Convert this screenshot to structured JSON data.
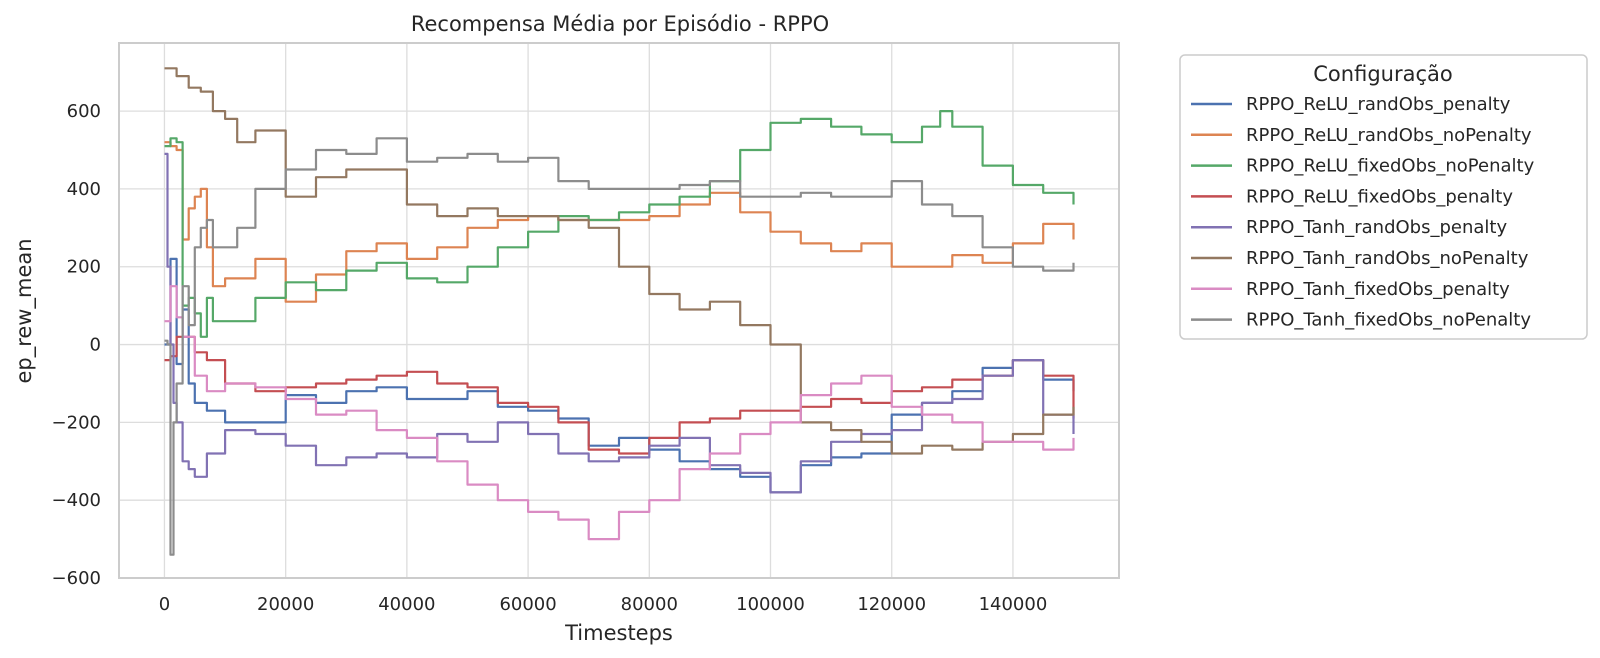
{
  "chart_data": {
    "type": "line",
    "title": "Recompensa Média por Episódio - RPPO",
    "xlabel": "Timesteps",
    "ylabel": "ep_rew_mean",
    "xlim": [
      -7500,
      157500
    ],
    "ylim": [
      -600,
      775
    ],
    "xticks": [
      0,
      20000,
      40000,
      60000,
      80000,
      100000,
      120000,
      140000
    ],
    "xtick_labels": [
      "0",
      "20000",
      "40000",
      "60000",
      "80000",
      "100000",
      "120000",
      "140000"
    ],
    "yticks": [
      -600,
      -400,
      -200,
      0,
      200,
      400,
      600
    ],
    "ytick_labels": [
      "−600",
      "−400",
      "−200",
      "0",
      "200",
      "400",
      "600"
    ],
    "grid": true,
    "legend_title": "Configuração",
    "legend_position": "outside-right",
    "series": [
      {
        "name": "RPPO_ReLU_randObs_penalty",
        "color": "#4c72b0",
        "x": [
          0,
          1000,
          2000,
          3000,
          4000,
          5000,
          7000,
          10000,
          15000,
          20000,
          25000,
          30000,
          35000,
          40000,
          45000,
          50000,
          55000,
          60000,
          65000,
          70000,
          75000,
          80000,
          85000,
          90000,
          95000,
          100000,
          105000,
          110000,
          115000,
          120000,
          125000,
          130000,
          135000,
          140000,
          145000,
          150000
        ],
        "y": [
          0,
          220,
          -50,
          90,
          -100,
          -150,
          -170,
          -200,
          -200,
          -130,
          -150,
          -120,
          -110,
          -140,
          -140,
          -120,
          -160,
          -170,
          -190,
          -260,
          -240,
          -270,
          -300,
          -320,
          -340,
          -380,
          -310,
          -290,
          -280,
          -180,
          -150,
          -120,
          -60,
          -40,
          -90,
          -120
        ]
      },
      {
        "name": "RPPO_ReLU_randObs_noPenalty",
        "color": "#dd8452",
        "x": [
          0,
          1000,
          2000,
          3000,
          4000,
          5000,
          6000,
          7000,
          8000,
          10000,
          15000,
          20000,
          25000,
          30000,
          35000,
          40000,
          45000,
          50000,
          55000,
          60000,
          65000,
          70000,
          75000,
          80000,
          85000,
          90000,
          95000,
          100000,
          105000,
          110000,
          115000,
          120000,
          125000,
          130000,
          135000,
          140000,
          145000,
          150000
        ],
        "y": [
          520,
          510,
          500,
          270,
          350,
          380,
          400,
          250,
          150,
          170,
          220,
          110,
          180,
          240,
          260,
          220,
          250,
          300,
          320,
          330,
          320,
          320,
          320,
          330,
          360,
          390,
          340,
          290,
          260,
          240,
          260,
          200,
          200,
          230,
          210,
          260,
          310,
          270
        ]
      },
      {
        "name": "RPPO_ReLU_fixedObs_noPenalty",
        "color": "#55a868",
        "x": [
          0,
          1000,
          2000,
          3000,
          4000,
          5000,
          6000,
          7000,
          8000,
          10000,
          15000,
          20000,
          25000,
          30000,
          35000,
          40000,
          45000,
          50000,
          55000,
          60000,
          65000,
          70000,
          75000,
          80000,
          85000,
          90000,
          95000,
          100000,
          105000,
          110000,
          115000,
          120000,
          125000,
          128000,
          130000,
          135000,
          140000,
          145000,
          150000
        ],
        "y": [
          510,
          530,
          520,
          100,
          120,
          80,
          20,
          120,
          60,
          60,
          120,
          160,
          140,
          190,
          210,
          170,
          160,
          200,
          250,
          290,
          330,
          320,
          340,
          360,
          380,
          420,
          500,
          570,
          580,
          560,
          540,
          520,
          560,
          600,
          560,
          460,
          410,
          390,
          360
        ]
      },
      {
        "name": "RPPO_ReLU_fixedObs_penalty",
        "color": "#c44e52",
        "x": [
          0,
          1000,
          2000,
          3000,
          5000,
          7000,
          10000,
          15000,
          20000,
          25000,
          30000,
          35000,
          40000,
          45000,
          50000,
          55000,
          60000,
          65000,
          70000,
          75000,
          80000,
          85000,
          90000,
          95000,
          100000,
          105000,
          110000,
          115000,
          120000,
          125000,
          130000,
          135000,
          140000,
          145000,
          150000
        ],
        "y": [
          -40,
          -30,
          20,
          20,
          -20,
          -40,
          -100,
          -120,
          -110,
          -100,
          -90,
          -80,
          -70,
          -100,
          -110,
          -150,
          -160,
          -200,
          -270,
          -280,
          -240,
          -200,
          -190,
          -170,
          -170,
          -160,
          -140,
          -150,
          -120,
          -110,
          -90,
          -80,
          -40,
          -80,
          -190
        ]
      },
      {
        "name": "RPPO_Tanh_randObs_penalty",
        "color": "#8172b3",
        "x": [
          0,
          500,
          1000,
          1500,
          2000,
          3000,
          4000,
          5000,
          7000,
          10000,
          15000,
          20000,
          25000,
          30000,
          35000,
          40000,
          45000,
          50000,
          55000,
          60000,
          65000,
          70000,
          75000,
          80000,
          85000,
          90000,
          95000,
          100000,
          105000,
          110000,
          115000,
          120000,
          125000,
          130000,
          135000,
          140000,
          145000,
          150000
        ],
        "y": [
          490,
          200,
          0,
          -150,
          -200,
          -300,
          -320,
          -340,
          -280,
          -220,
          -230,
          -260,
          -310,
          -290,
          -280,
          -290,
          -230,
          -250,
          -200,
          -230,
          -280,
          -300,
          -290,
          -260,
          -240,
          -310,
          -330,
          -380,
          -300,
          -250,
          -230,
          -220,
          -150,
          -140,
          -80,
          -40,
          -180,
          -230
        ]
      },
      {
        "name": "RPPO_Tanh_randObs_noPenalty",
        "color": "#937860",
        "x": [
          0,
          2000,
          4000,
          6000,
          8000,
          10000,
          12000,
          15000,
          20000,
          25000,
          30000,
          35000,
          40000,
          45000,
          50000,
          55000,
          60000,
          65000,
          70000,
          75000,
          80000,
          85000,
          90000,
          95000,
          100000,
          105000,
          110000,
          115000,
          120000,
          125000,
          130000,
          135000,
          140000,
          145000,
          150000
        ],
        "y": [
          710,
          690,
          660,
          650,
          600,
          580,
          520,
          550,
          380,
          430,
          450,
          450,
          360,
          330,
          350,
          330,
          330,
          320,
          300,
          200,
          130,
          90,
          110,
          50,
          0,
          -200,
          -220,
          -250,
          -280,
          -260,
          -270,
          -250,
          -230,
          -180,
          -160
        ]
      },
      {
        "name": "RPPO_Tanh_fixedObs_penalty",
        "color": "#da8bc3",
        "x": [
          0,
          1000,
          2000,
          3000,
          5000,
          7000,
          10000,
          15000,
          20000,
          25000,
          30000,
          35000,
          40000,
          45000,
          50000,
          55000,
          60000,
          65000,
          70000,
          75000,
          80000,
          85000,
          90000,
          95000,
          100000,
          105000,
          110000,
          115000,
          120000,
          125000,
          130000,
          135000,
          140000,
          145000,
          150000
        ],
        "y": [
          60,
          150,
          70,
          20,
          -80,
          -120,
          -100,
          -110,
          -140,
          -180,
          -170,
          -220,
          -240,
          -300,
          -360,
          -400,
          -430,
          -450,
          -500,
          -430,
          -400,
          -320,
          -280,
          -230,
          -200,
          -130,
          -100,
          -80,
          -160,
          -180,
          -200,
          -250,
          -250,
          -270,
          -240
        ]
      },
      {
        "name": "RPPO_Tanh_fixedObs_noPenalty",
        "color": "#8c8c8c",
        "x": [
          0,
          500,
          1000,
          1500,
          2000,
          3000,
          4000,
          5000,
          6000,
          7000,
          8000,
          10000,
          12000,
          15000,
          20000,
          25000,
          30000,
          35000,
          40000,
          45000,
          50000,
          55000,
          60000,
          65000,
          70000,
          75000,
          80000,
          85000,
          90000,
          95000,
          100000,
          105000,
          110000,
          115000,
          120000,
          125000,
          130000,
          135000,
          140000,
          145000,
          150000
        ],
        "y": [
          10,
          0,
          -540,
          -200,
          -100,
          150,
          50,
          250,
          300,
          320,
          250,
          250,
          300,
          400,
          450,
          500,
          490,
          530,
          470,
          480,
          490,
          470,
          480,
          420,
          400,
          400,
          400,
          410,
          420,
          380,
          380,
          390,
          380,
          380,
          420,
          360,
          330,
          250,
          200,
          190,
          210
        ]
      }
    ]
  }
}
